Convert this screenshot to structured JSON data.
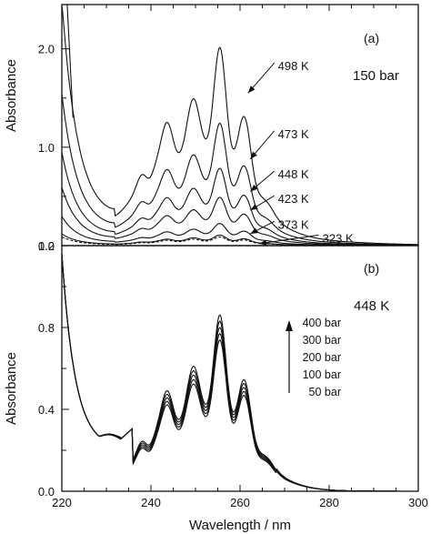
{
  "chart_data": [
    {
      "type": "line",
      "panel_label": "(a)",
      "condition": "150 bar",
      "xlabel": "",
      "ylabel": "Absorbance",
      "xlim": [
        220,
        300
      ],
      "ylim": [
        0,
        2.45
      ],
      "yticks": [
        0.0,
        1.0,
        2.0
      ],
      "yticklabels": [
        "0.0",
        "1.0",
        "2.0"
      ],
      "series": [
        {
          "name": "498 K",
          "scale": 2.25,
          "base": 0.42
        },
        {
          "name": "473 K",
          "scale": 1.39,
          "base": 0.26
        },
        {
          "name": "448 K",
          "scale": 0.88,
          "base": 0.16
        },
        {
          "name": "423 K",
          "scale": 0.55,
          "base": 0.1
        },
        {
          "name": "373 K",
          "scale": 0.25,
          "base": 0.05
        },
        {
          "name": "323 K",
          "scale": 0.12,
          "base": 0.02
        },
        {
          "name": "",
          "scale": 0.1,
          "base": 0.015,
          "dashed": true
        }
      ],
      "annotations": [
        {
          "text": "498 K",
          "label_at": [
            268.5,
            1.82
          ],
          "arrow_to": [
            261.8,
            1.55
          ]
        },
        {
          "text": "473 K",
          "label_at": [
            268.5,
            1.13
          ],
          "arrow_to": [
            262.3,
            0.88
          ]
        },
        {
          "text": "448 K",
          "label_at": [
            268.5,
            0.72
          ],
          "arrow_to": [
            262.3,
            0.55
          ]
        },
        {
          "text": "423 K",
          "label_at": [
            268.5,
            0.47
          ],
          "arrow_to": [
            262.3,
            0.36
          ]
        },
        {
          "text": "373 K",
          "label_at": [
            268.5,
            0.21
          ],
          "arrow_to": [
            262.3,
            0.12
          ]
        },
        {
          "text": "323 K",
          "label_at": [
            278.5,
            0.07
          ],
          "arrow_to": [
            264.3,
            0.02
          ]
        }
      ]
    },
    {
      "type": "line",
      "panel_label": "(b)",
      "condition": "448 K",
      "xlabel": "Wavelength / nm",
      "ylabel": "Absorbance",
      "xlim": [
        220,
        300
      ],
      "ylim": [
        0,
        1.2
      ],
      "xticks": [
        220,
        240,
        260,
        280,
        300
      ],
      "xticklabels": [
        "220",
        "240",
        "260",
        "280",
        "300"
      ],
      "yticks": [
        0.0,
        0.4,
        0.8,
        1.2
      ],
      "yticklabels": [
        "0.0",
        "0.4",
        "0.8",
        "1.2"
      ],
      "legend_header_arrow": "up",
      "series": [
        {
          "name": "400 bar",
          "scale": 1.13
        },
        {
          "name": "300 bar",
          "scale": 1.09
        },
        {
          "name": "200 bar",
          "scale": 1.05
        },
        {
          "name": "100 bar",
          "scale": 1.01
        },
        {
          "name": "50 bar",
          "scale": 0.97
        }
      ]
    }
  ]
}
